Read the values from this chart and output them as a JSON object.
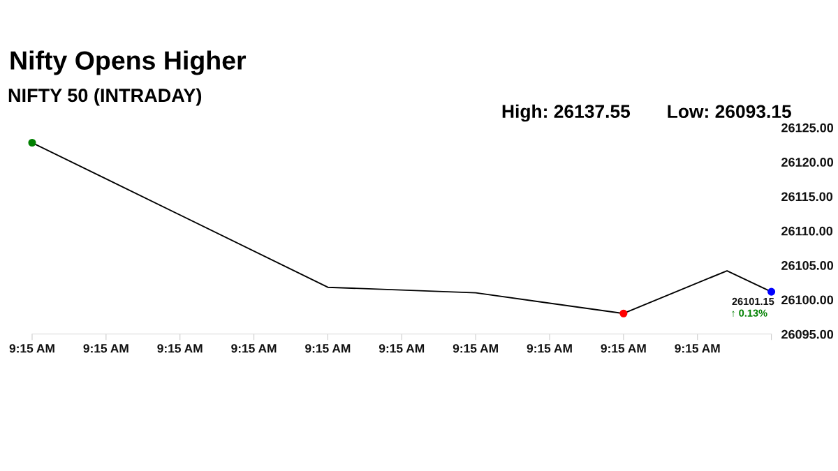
{
  "chart_data": {
    "type": "line",
    "title": "Nifty Opens Higher",
    "subtitle": "NIFTY 50 (INTRADAY)",
    "annotations": [
      "High: 26137.55",
      "Low: 26093.15",
      "↑ 0.13%"
    ],
    "categories": [
      "9:15 AM",
      null,
      null,
      null,
      null,
      "9:15 AM",
      null,
      null,
      null,
      null,
      "9:15 AM",
      null,
      null,
      null,
      null,
      "9:15 AM",
      null,
      null,
      null,
      null,
      "9:15 AM",
      null,
      null,
      null,
      null,
      "9:15 AM",
      null,
      null,
      null,
      null,
      "9:15 AM",
      null,
      null,
      null,
      null,
      "9:15 AM",
      null,
      null,
      null,
      null,
      "9:15 AM",
      null,
      null,
      null,
      null,
      "9:15 AM",
      null,
      null,
      null,
      null,
      null
    ],
    "series": [
      {
        "color": "#000000",
        "values": [
          26122.8,
          null,
          null,
          null,
          null,
          null,
          null,
          null,
          null,
          null,
          null,
          null,
          null,
          null,
          null,
          null,
          null,
          null,
          null,
          null,
          26101.8,
          null,
          null,
          null,
          null,
          null,
          null,
          null,
          null,
          null,
          26101.0,
          null,
          null,
          null,
          null,
          null,
          null,
          null,
          null,
          null,
          26098.0,
          null,
          null,
          null,
          null,
          null,
          null,
          26104.2,
          null,
          null,
          26101.15
        ],
        "colors": [
          "#008000",
          null,
          null,
          null,
          null,
          null,
          null,
          null,
          null,
          null,
          null,
          null,
          null,
          null,
          null,
          null,
          null,
          null,
          null,
          null,
          null,
          null,
          null,
          null,
          null,
          null,
          null,
          null,
          null,
          null,
          null,
          null,
          null,
          null,
          null,
          null,
          null,
          null,
          null,
          null,
          "#ff0000",
          null,
          null,
          null,
          null,
          null,
          null,
          null,
          null,
          null,
          "#0000ff"
        ],
        "value_labels": [
          null,
          null,
          null,
          null,
          null,
          null,
          null,
          null,
          null,
          null,
          null,
          null,
          null,
          null,
          null,
          null,
          null,
          null,
          null,
          null,
          null,
          null,
          null,
          null,
          null,
          null,
          null,
          null,
          null,
          null,
          null,
          null,
          null,
          null,
          null,
          null,
          null,
          null,
          null,
          null,
          null,
          null,
          null,
          null,
          null,
          null,
          null,
          null,
          null,
          null,
          "26101.15"
        ]
      }
    ],
    "ylim": [
      26095,
      26125
    ],
    "yticks": [
      {
        "value": 26095,
        "label": "26095.00"
      },
      {
        "value": 26100,
        "label": "26100.00"
      },
      {
        "value": 26105,
        "label": "26105.00"
      },
      {
        "value": 26110,
        "label": "26110.00"
      },
      {
        "value": 26115,
        "label": "26115.00"
      },
      {
        "value": 26120,
        "label": "26120.00"
      },
      {
        "value": 26125,
        "label": "26125.00"
      }
    ],
    "marker": "circle",
    "line_style": "solid",
    "grid": false
  }
}
